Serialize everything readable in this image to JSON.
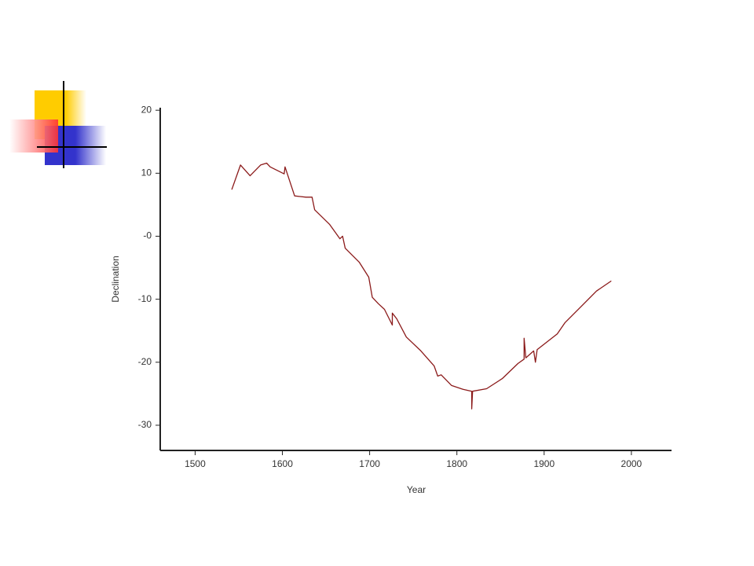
{
  "chart_data": {
    "type": "line",
    "x_label": "Year",
    "y_label": "Declination",
    "color": "#8b1a1a",
    "x": [
      1542,
      1552,
      1563,
      1575,
      1582,
      1586,
      1602,
      1603,
      1614,
      1627,
      1634,
      1637,
      1654,
      1666,
      1669,
      1672,
      1688,
      1699,
      1703,
      1710,
      1717,
      1726,
      1726,
      1731,
      1742,
      1758,
      1774,
      1778,
      1782,
      1794,
      1807,
      1817,
      1817,
      1818,
      1834,
      1852,
      1870,
      1877,
      1877,
      1879,
      1888,
      1890,
      1892,
      1915,
      1924,
      1942,
      1960,
      1977
    ],
    "values": [
      7.4,
      11.3,
      9.6,
      11.3,
      11.6,
      11.0,
      9.9,
      11.0,
      6.4,
      6.2,
      6.2,
      4.2,
      1.9,
      -0.4,
      0,
      -1.9,
      -4.1,
      -6.5,
      -9.7,
      -10.7,
      -11.6,
      -14.1,
      -12.2,
      -13.1,
      -16.0,
      -18.1,
      -20.6,
      -22.2,
      -22.0,
      -23.7,
      -24.3,
      -24.6,
      -27.4,
      -24.6,
      -24.2,
      -22.6,
      -20.2,
      -19.5,
      -16.2,
      -19.3,
      -18.2,
      -20.0,
      -18.0,
      -15.5,
      -13.7,
      -11.2,
      -8.7,
      -7.1
    ],
    "xlim": [
      1460,
      2046
    ],
    "xticks": [
      1500,
      1600,
      1700,
      1800,
      1900,
      2000
    ],
    "ylim": [
      -34,
      20.4
    ],
    "yticks": [
      20,
      10,
      {
        "value": 0,
        "label": "-0"
      },
      -10,
      -20,
      -30
    ]
  }
}
